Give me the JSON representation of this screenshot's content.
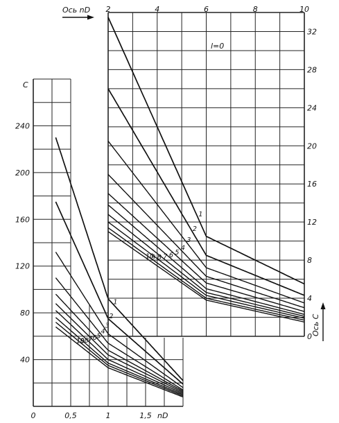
{
  "chart_data": [
    {
      "type": "line",
      "panel": "lower-left",
      "xlabel": "nD",
      "ylabel": "C",
      "xlim": [
        0,
        2
      ],
      "ylim": [
        0,
        280
      ],
      "x_ticks": [
        "0",
        "0,5",
        "1",
        "1,5"
      ],
      "y_ticks": [
        "40",
        "80",
        "120",
        "160",
        "200",
        "240"
      ],
      "grid": true,
      "x_start": 0.3,
      "x_end": 2.0,
      "curve_labels": [
        "1",
        "2",
        "3",
        "4",
        "5",
        "6",
        "7",
        "8",
        "9",
        "10"
      ],
      "series": [
        {
          "name": "1",
          "x": [
            0.3,
            1.0,
            2.0
          ],
          "y": [
            230,
            92,
            22
          ]
        },
        {
          "name": "2",
          "x": [
            0.3,
            1.0,
            2.0
          ],
          "y": [
            175,
            75,
            19
          ]
        },
        {
          "name": "3",
          "x": [
            0.3,
            1.0,
            2.0
          ],
          "y": [
            132,
            62,
            16
          ]
        },
        {
          "name": "4",
          "x": [
            0.3,
            1.0,
            2.0
          ],
          "y": [
            110,
            54,
            14
          ]
        },
        {
          "name": "5",
          "x": [
            0.3,
            1.0,
            2.0
          ],
          "y": [
            96,
            48,
            13
          ]
        },
        {
          "name": "6",
          "x": [
            0.3,
            1.0,
            2.0
          ],
          "y": [
            88,
            44,
            12
          ]
        },
        {
          "name": "7",
          "x": [
            0.3,
            1.0,
            2.0
          ],
          "y": [
            82,
            40,
            11
          ]
        },
        {
          "name": "8",
          "x": [
            0.3,
            1.0,
            2.0
          ],
          "y": [
            76,
            37,
            10
          ]
        },
        {
          "name": "9",
          "x": [
            0.3,
            1.0,
            2.0
          ],
          "y": [
            72,
            35,
            9
          ]
        },
        {
          "name": "10",
          "x": [
            0.3,
            1.0,
            2.0
          ],
          "y": [
            68,
            33,
            8
          ]
        }
      ]
    },
    {
      "type": "line",
      "panel": "upper-right",
      "x_axis_label": "Ось nD",
      "y_axis_label": "Ось C",
      "annotation": "l=0",
      "xlim": [
        2,
        10
      ],
      "ylim": [
        0,
        34
      ],
      "x_ticks": [
        "2",
        "4",
        "6",
        "8",
        "10"
      ],
      "y_ticks": [
        "0",
        "4",
        "8",
        "12",
        "16",
        "20",
        "24",
        "28",
        "32"
      ],
      "grid": true,
      "x_start": 2.0,
      "x_end": 10.0,
      "curve_labels": [
        "1",
        "2",
        "3",
        "4",
        "5",
        "6",
        "7",
        "8",
        "9",
        "10"
      ],
      "series": [
        {
          "name": "1",
          "x": [
            2.0,
            6.0,
            10.0
          ],
          "y": [
            33.5,
            10.5,
            5.5
          ]
        },
        {
          "name": "2",
          "x": [
            2.0,
            6.0,
            10.0
          ],
          "y": [
            26.0,
            8.5,
            4.3
          ]
        },
        {
          "name": "3",
          "x": [
            2.0,
            6.0,
            10.0
          ],
          "y": [
            20.5,
            7.2,
            3.5
          ]
        },
        {
          "name": "4",
          "x": [
            2.0,
            6.0,
            10.0
          ],
          "y": [
            17.0,
            6.3,
            3.0
          ]
        },
        {
          "name": "5",
          "x": [
            2.0,
            6.0,
            10.0
          ],
          "y": [
            15.0,
            5.6,
            2.6
          ]
        },
        {
          "name": "6",
          "x": [
            2.0,
            6.0,
            10.0
          ],
          "y": [
            13.8,
            5.0,
            2.3
          ]
        },
        {
          "name": "7",
          "x": [
            2.0,
            6.0,
            10.0
          ],
          "y": [
            12.8,
            4.6,
            2.1
          ]
        },
        {
          "name": "8",
          "x": [
            2.0,
            6.0,
            10.0
          ],
          "y": [
            12.0,
            4.3,
            1.9
          ]
        },
        {
          "name": "9",
          "x": [
            2.0,
            6.0,
            10.0
          ],
          "y": [
            11.4,
            4.0,
            1.7
          ]
        },
        {
          "name": "10",
          "x": [
            2.0,
            6.0,
            10.0
          ],
          "y": [
            11.0,
            3.8,
            1.5
          ]
        }
      ]
    }
  ]
}
